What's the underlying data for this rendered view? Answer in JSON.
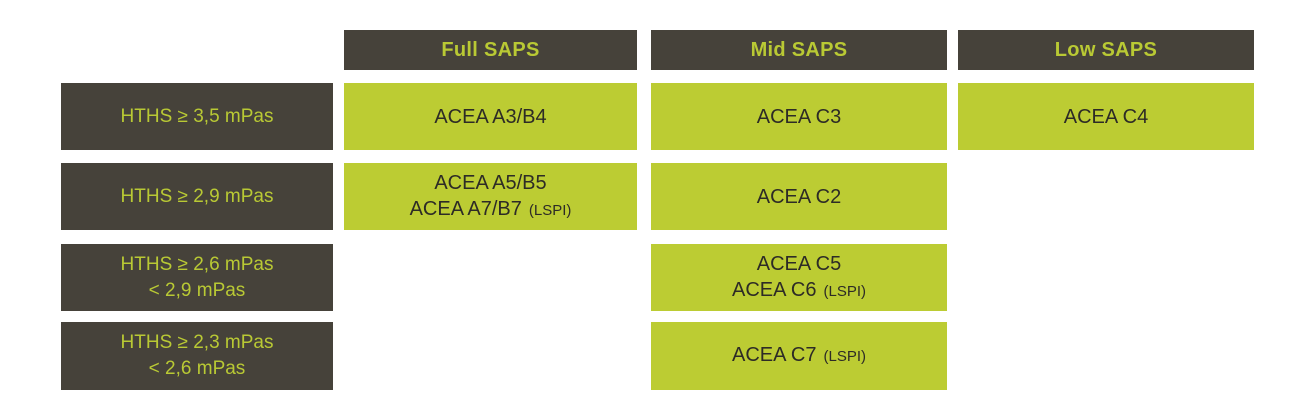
{
  "colors": {
    "background": "#ffffff",
    "box_dark": "#46423a",
    "box_green": "#bccc33",
    "text_green": "#b9c934",
    "text_dark": "#2d2b26"
  },
  "table": {
    "column_headers": [
      {
        "id": "full-saps",
        "label": "Full SAPS"
      },
      {
        "id": "mid-saps",
        "label": "Mid SAPS"
      },
      {
        "id": "low-saps",
        "label": "Low SAPS"
      }
    ],
    "rows": [
      {
        "label": {
          "line1": "HTHS ≥ 3,5 mPas"
        },
        "full": {
          "line1": "ACEA A3/B4"
        },
        "mid": {
          "line1": "ACEA C3"
        },
        "low": {
          "line1": "ACEA C4"
        }
      },
      {
        "label": {
          "line1": "HTHS ≥ 2,9 mPas"
        },
        "full": {
          "line1": "ACEA A5/B5",
          "line2": "ACEA A7/B7",
          "line2_suffix": "(LSPI)"
        },
        "mid": {
          "line1": "ACEA C2"
        }
      },
      {
        "label": {
          "line1": "HTHS ≥ 2,6 mPas",
          "line2": "< 2,9 mPas"
        },
        "mid": {
          "line1": "ACEA C5",
          "line2": "ACEA C6",
          "line2_suffix": "(LSPI)"
        }
      },
      {
        "label": {
          "line1": "HTHS ≥ 2,3 mPas",
          "line2": "< 2,6 mPas"
        },
        "mid": {
          "line1": "ACEA C7",
          "line1_suffix": "(LSPI)"
        }
      }
    ]
  }
}
